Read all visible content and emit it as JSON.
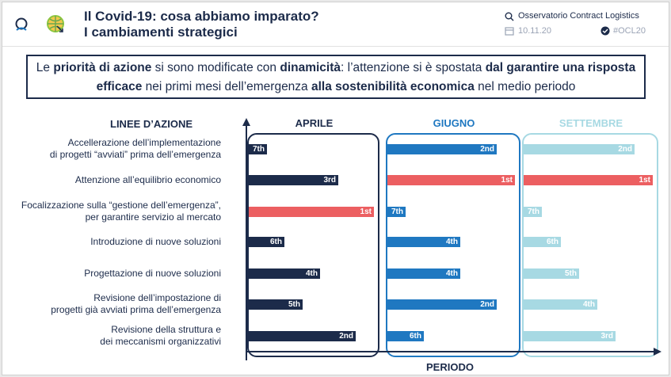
{
  "header": {
    "title_line1": "Il Covid-19: cosa abbiamo imparato?",
    "title_line2": "I cambiamenti strategici",
    "org": "Osservatorio Contract Logistics",
    "date": "10.11.20",
    "hashtag": "#OCL20"
  },
  "banner": {
    "p1": "Le ",
    "b1": "priorità di azione",
    "p2": " si sono modificate con ",
    "b2": "dinamicità",
    "p3": ": l’attenzione si è spostata ",
    "b3": "dal garantire una risposta efficace",
    "p4": " nei primi mesi dell’emergenza ",
    "b4": "alla sostenibilità economica",
    "p5": " nel medio periodo"
  },
  "colors": {
    "navy": "#1c2b4a",
    "red": "#ec5f61",
    "blue": "#1f78c1",
    "light": "#a7d9e3"
  },
  "chart_data": {
    "type": "bar",
    "title": "",
    "row_header": "LINEE D’AZIONE",
    "xlabel": "PERIODO",
    "categories": [
      [
        "Accellerazione dell’implementazione",
        "di progetti “avviati” prima dell’emergenza"
      ],
      [
        "Attenzione all’equilibrio economico"
      ],
      [
        "Focalizzazione sulla “gestione dell’emergenza”,",
        "per garantire servizio al mercato"
      ],
      [
        "Introduzione di nuove soluzioni"
      ],
      [
        "Progettazione di nuove soluzioni"
      ],
      [
        "Revisione dell’impostazione di",
        "progetti già avviati prima dell’emergenza"
      ],
      [
        "Revisione della struttura e",
        "dei meccanismi organizzativi"
      ]
    ],
    "series": [
      {
        "name": "APRILE",
        "color": "#1c2b4a",
        "values": [
          7,
          3,
          1,
          6,
          4,
          5,
          2
        ],
        "labels": [
          "7th",
          "3rd",
          "1st",
          "6th",
          "4th",
          "5th",
          "2nd"
        ]
      },
      {
        "name": "GIUGNO",
        "color": "#1f78c1",
        "values": [
          2,
          1,
          7,
          4,
          4,
          2,
          6
        ],
        "labels": [
          "2nd",
          "1st",
          "7th",
          "4th",
          "4th",
          "2nd",
          "6th"
        ]
      },
      {
        "name": "SETTEMBRE",
        "color": "#a7d9e3",
        "values": [
          2,
          1,
          7,
          6,
          5,
          4,
          3
        ],
        "labels": [
          "2nd",
          "1st",
          "7th",
          "6th",
          "5th",
          "4th",
          "3rd"
        ]
      }
    ],
    "highlight_rank": 1,
    "highlight_color": "#ec5f61"
  }
}
